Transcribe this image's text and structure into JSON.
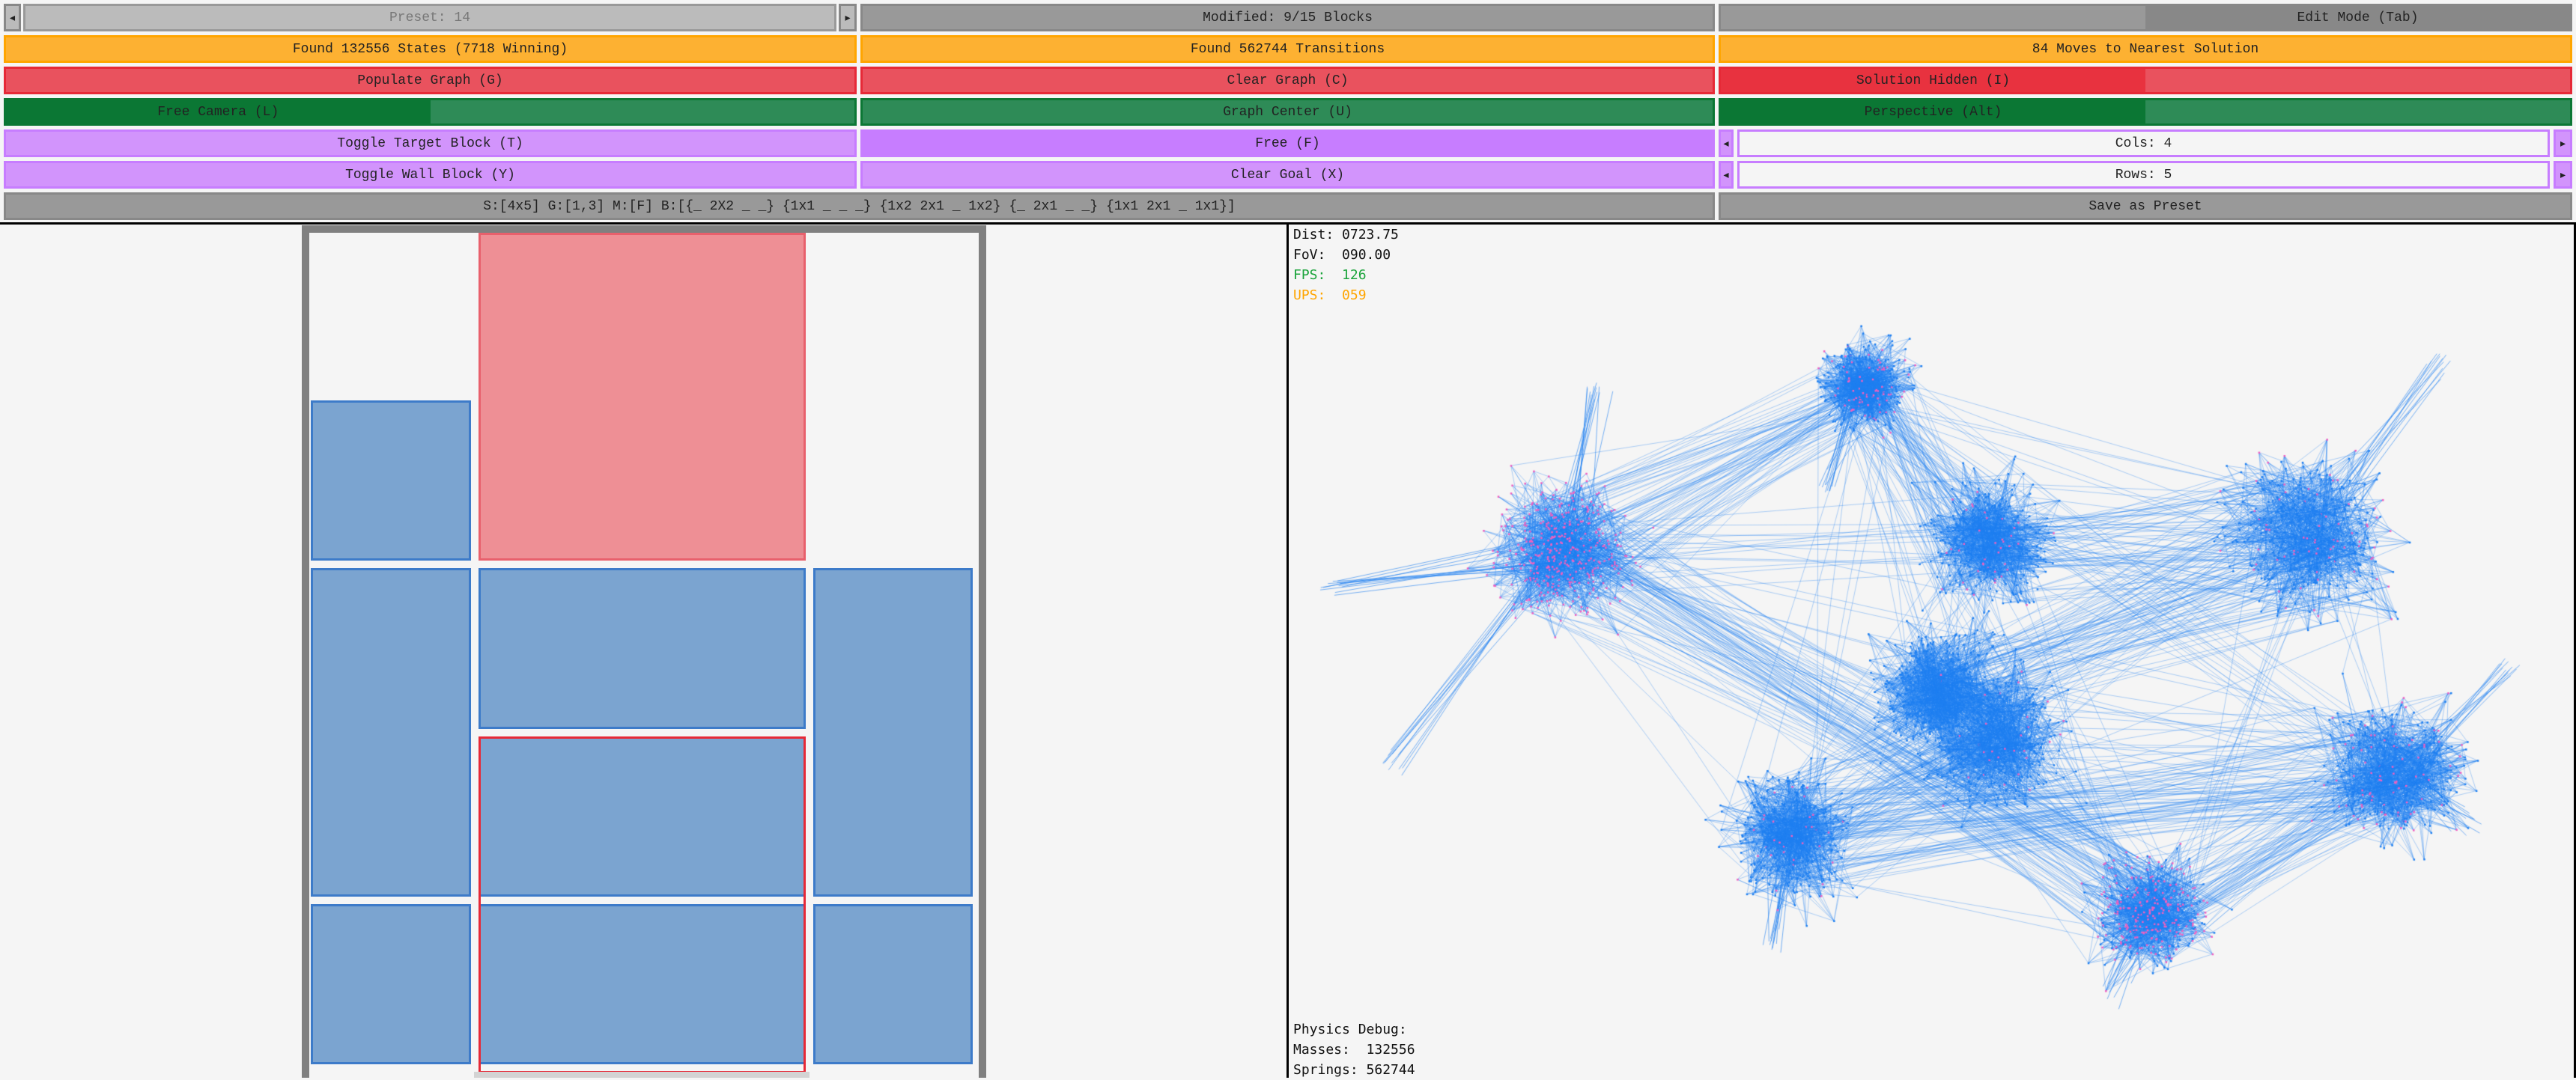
{
  "toolbar": {
    "preset": {
      "label": "Preset: 14",
      "prev": "◂",
      "next": "▸"
    },
    "modified": "Modified: 9/15 Blocks",
    "edit_mode": "Edit Mode (Tab)",
    "found_states": "Found 132556 States (7718 Winning)",
    "found_transitions": "Found 562744 Transitions",
    "nearest_solution": "84 Moves to Nearest Solution",
    "populate_graph": "Populate Graph (G)",
    "clear_graph": "Clear Graph (C)",
    "solution_hidden": "Solution Hidden (I)",
    "free_camera": "Free Camera (L)",
    "graph_center": "Graph Center (U)",
    "perspective": "Perspective (Alt)",
    "toggle_target": "Toggle Target Block (T)",
    "free": "Free (F)",
    "cols": {
      "label": "Cols: 4",
      "prev": "◂",
      "next": "▸"
    },
    "toggle_wall": "Toggle Wall Block (Y)",
    "clear_goal": "Clear Goal (X)",
    "rows": {
      "label": "Rows: 5",
      "prev": "◂",
      "next": "▸"
    },
    "state_string": "S:[4x5] G:[1,3] M:[F] B:[{_ 2X2 _ _} {1x1 _ _ _} {1x2 2x1 _ 1x2} {_ 2x1 _ _} {1x1 2x1 _ 1x1}]",
    "save_preset": "Save as Preset"
  },
  "board": {
    "cols": 4,
    "rows": 5,
    "goal": {
      "col": 1,
      "row": 3,
      "w": 2,
      "h": 2
    },
    "blocks": [
      {
        "col": 1,
        "row": 0,
        "w": 2,
        "h": 2,
        "target": true
      },
      {
        "col": 0,
        "row": 1,
        "w": 1,
        "h": 1
      },
      {
        "col": 0,
        "row": 2,
        "w": 1,
        "h": 2
      },
      {
        "col": 1,
        "row": 2,
        "w": 2,
        "h": 1
      },
      {
        "col": 3,
        "row": 2,
        "w": 1,
        "h": 2
      },
      {
        "col": 1,
        "row": 3,
        "w": 2,
        "h": 1
      },
      {
        "col": 0,
        "row": 4,
        "w": 1,
        "h": 1
      },
      {
        "col": 1,
        "row": 4,
        "w": 2,
        "h": 1
      },
      {
        "col": 3,
        "row": 4,
        "w": 1,
        "h": 1
      }
    ],
    "colors": {
      "block": "#7ba4d0",
      "block_border": "#3d7bc9",
      "target": "#ee8f95",
      "goal": "#e62937",
      "wall": "#808080"
    }
  },
  "overlay": {
    "dist": "Dist: 0723.75",
    "fov": "FoV:  090.00",
    "fps": "FPS:  126",
    "ups": "UPS:  059",
    "physics_title": "Physics Debug:",
    "masses": "Masses:  132556",
    "springs": "Springs: 562744",
    "colors": {
      "fps": "#1aa33a",
      "ups": "#ffa500",
      "edge": "#1e7ff0",
      "node": "#f060c0"
    }
  }
}
